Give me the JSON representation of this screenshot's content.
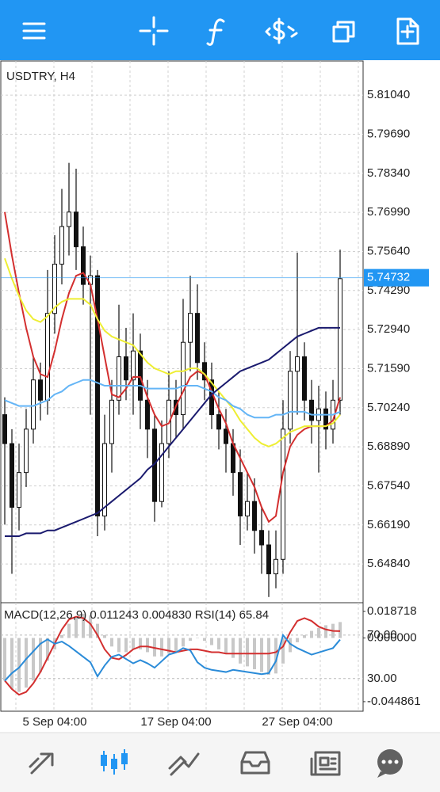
{
  "chart_data": [
    {
      "type": "candlestick",
      "title": "USDTRY, H4",
      "categories": [
        null,
        null,
        null,
        null,
        null,
        null,
        null,
        "5 Sep 04:00",
        null,
        null,
        null,
        null,
        null,
        null,
        null,
        null,
        null,
        null,
        null,
        null,
        null,
        null,
        null,
        null,
        "17 Sep 04:00",
        null,
        null,
        null,
        null,
        null,
        null,
        null,
        null,
        null,
        null,
        null,
        null,
        null,
        null,
        null,
        null,
        "27 Sep 04:00",
        null,
        null,
        null,
        null,
        null,
        null
      ],
      "open": [
        5.7,
        5.69,
        5.668,
        5.68,
        5.695,
        5.712,
        5.705,
        5.735,
        5.752,
        5.765,
        5.77,
        5.758,
        5.745,
        5.748,
        5.665,
        5.69,
        5.705,
        5.72,
        5.712,
        5.722,
        5.705,
        5.695,
        5.67,
        5.69,
        5.705,
        5.7,
        5.725,
        5.735,
        5.718,
        5.712,
        5.7,
        5.695,
        5.69,
        5.68,
        5.665,
        5.67,
        5.66,
        5.655,
        5.645,
        5.65,
        5.695,
        5.715,
        5.72,
        5.705,
        5.698,
        5.702,
        5.695,
        5.705
      ],
      "high": [
        5.706,
        5.695,
        5.69,
        5.702,
        5.72,
        5.718,
        5.75,
        5.762,
        5.778,
        5.787,
        5.785,
        5.765,
        5.755,
        5.75,
        5.7,
        5.712,
        5.738,
        5.73,
        5.735,
        5.728,
        5.712,
        5.7,
        5.698,
        5.715,
        5.712,
        5.74,
        5.748,
        5.745,
        5.725,
        5.718,
        5.708,
        5.702,
        5.695,
        5.688,
        5.68,
        5.678,
        5.668,
        5.66,
        5.66,
        5.705,
        5.722,
        5.756,
        5.725,
        5.712,
        5.71,
        5.708,
        5.712,
        5.757
      ],
      "low": [
        5.662,
        5.645,
        5.66,
        5.675,
        5.69,
        5.698,
        5.7,
        5.728,
        5.745,
        5.755,
        5.75,
        5.738,
        5.7,
        5.658,
        5.66,
        5.68,
        5.7,
        5.705,
        5.7,
        5.695,
        5.685,
        5.663,
        5.668,
        5.685,
        5.692,
        5.695,
        5.715,
        5.712,
        5.705,
        5.695,
        5.688,
        5.68,
        5.672,
        5.655,
        5.66,
        5.652,
        5.645,
        5.637,
        5.64,
        5.645,
        5.69,
        5.7,
        5.698,
        5.69,
        5.68,
        5.688,
        5.69,
        5.7
      ],
      "close": [
        5.69,
        5.668,
        5.68,
        5.695,
        5.712,
        5.705,
        5.735,
        5.752,
        5.765,
        5.77,
        5.758,
        5.745,
        5.748,
        5.665,
        5.69,
        5.705,
        5.72,
        5.712,
        5.722,
        5.705,
        5.695,
        5.67,
        5.69,
        5.705,
        5.7,
        5.725,
        5.735,
        5.718,
        5.712,
        5.7,
        5.695,
        5.69,
        5.68,
        5.665,
        5.67,
        5.66,
        5.655,
        5.645,
        5.65,
        5.695,
        5.715,
        5.72,
        5.705,
        5.698,
        5.702,
        5.695,
        5.705,
        5.747
      ],
      "series": [
        {
          "color": "#d32f2f",
          "values": [
            5.77,
            5.755,
            5.742,
            5.73,
            5.72,
            5.714,
            5.713,
            5.722,
            5.733,
            5.742,
            5.748,
            5.749,
            5.745,
            5.733,
            5.72,
            5.707,
            5.706,
            5.709,
            5.713,
            5.713,
            5.706,
            5.7,
            5.696,
            5.697,
            5.703,
            5.708,
            5.713,
            5.715,
            5.714,
            5.708,
            5.702,
            5.697,
            5.69,
            5.685,
            5.68,
            5.675,
            5.668,
            5.663,
            5.665,
            5.68,
            5.689,
            5.693,
            5.695,
            5.696,
            5.696,
            5.696,
            5.698,
            5.706
          ]
        },
        {
          "color": "#eeee33",
          "values": [
            5.754,
            5.747,
            5.741,
            5.736,
            5.733,
            5.732,
            5.734,
            5.737,
            5.739,
            5.74,
            5.74,
            5.74,
            5.738,
            5.733,
            5.729,
            5.727,
            5.726,
            5.725,
            5.724,
            5.721,
            5.718,
            5.716,
            5.715,
            5.714,
            5.715,
            5.715,
            5.716,
            5.716,
            5.714,
            5.711,
            5.708,
            5.705,
            5.702,
            5.698,
            5.695,
            5.692,
            5.69,
            5.689,
            5.69,
            5.692,
            5.694,
            5.695,
            5.696,
            5.696,
            5.696,
            5.696,
            5.697,
            5.7
          ]
        },
        {
          "color": "#64b5f6",
          "values": [
            5.705,
            5.704,
            5.703,
            5.703,
            5.703,
            5.704,
            5.705,
            5.707,
            5.708,
            5.71,
            5.711,
            5.712,
            5.712,
            5.711,
            5.71,
            5.71,
            5.71,
            5.71,
            5.71,
            5.71,
            5.709,
            5.709,
            5.709,
            5.709,
            5.709,
            5.71,
            5.71,
            5.71,
            5.709,
            5.708,
            5.706,
            5.705,
            5.703,
            5.702,
            5.7,
            5.699,
            5.699,
            5.699,
            5.7,
            5.7,
            5.701,
            5.701,
            5.701,
            5.7,
            5.7,
            5.7,
            5.7,
            5.701
          ]
        },
        {
          "color": "#1a1a6e",
          "values": [
            5.658,
            5.658,
            5.658,
            5.659,
            5.659,
            5.659,
            5.66,
            5.66,
            5.661,
            5.662,
            5.663,
            5.664,
            5.665,
            5.666,
            5.668,
            5.67,
            5.672,
            5.674,
            5.676,
            5.678,
            5.681,
            5.683,
            5.686,
            5.689,
            5.692,
            5.695,
            5.698,
            5.701,
            5.704,
            5.707,
            5.709,
            5.711,
            5.713,
            5.715,
            5.716,
            5.717,
            5.718,
            5.719,
            5.721,
            5.723,
            5.725,
            5.727,
            5.728,
            5.729,
            5.73,
            5.73,
            5.73,
            5.73
          ]
        }
      ],
      "ylim": [
        5.6353,
        5.8222
      ],
      "yticks": [
        {
          "value": 5.8104,
          "label": "5.81040"
        },
        {
          "value": 5.7969,
          "label": "5.79690"
        },
        {
          "value": 5.7834,
          "label": "5.78340"
        },
        {
          "value": 5.7699,
          "label": "5.76990"
        },
        {
          "value": 5.7564,
          "label": "5.75640"
        },
        {
          "value": 5.7429,
          "label": "5.74290"
        },
        {
          "value": 5.7294,
          "label": "5.72940"
        },
        {
          "value": 5.7159,
          "label": "5.71590"
        },
        {
          "value": 5.7024,
          "label": "5.70240"
        },
        {
          "value": 5.6889,
          "label": "5.68890"
        },
        {
          "value": 5.6754,
          "label": "5.67540"
        },
        {
          "value": 5.6619,
          "label": "5.66190"
        },
        {
          "value": 5.6484,
          "label": "5.64840"
        }
      ],
      "current_price": 5.74732,
      "current_price_color": "#2196f3",
      "grid": true
    },
    {
      "type": "macd",
      "legend": "MACD(12,26,9) 0.011243 0.004830 RSI(14) 65.84",
      "histogram": {
        "color": "#c8c8c8",
        "values": [
          -0.03,
          -0.036,
          -0.038,
          -0.035,
          -0.03,
          -0.024,
          -0.016,
          -0.008,
          0.002,
          0.01,
          0.015,
          0.017,
          0.016,
          0.01,
          0.002,
          -0.006,
          -0.01,
          -0.01,
          -0.008,
          -0.008,
          -0.01,
          -0.013,
          -0.013,
          -0.011,
          -0.01,
          -0.006,
          -0.002,
          0.0,
          -0.002,
          -0.005,
          -0.008,
          -0.011,
          -0.014,
          -0.018,
          -0.02,
          -0.022,
          -0.024,
          -0.026,
          -0.025,
          -0.018,
          -0.01,
          -0.003,
          0.002,
          0.005,
          0.007,
          0.009,
          0.01,
          0.011243
        ]
      },
      "series": [
        {
          "color": "#d32f2f",
          "values": [
            -0.03,
            -0.036,
            -0.04,
            -0.038,
            -0.032,
            -0.024,
            -0.014,
            -0.004,
            0.006,
            0.013,
            0.015,
            0.014,
            0.01,
            0.002,
            -0.008,
            -0.014,
            -0.015,
            -0.012,
            -0.008,
            -0.006,
            -0.006,
            -0.007,
            -0.008,
            -0.009,
            -0.01,
            -0.009,
            -0.008,
            -0.008,
            -0.009,
            -0.01,
            -0.01,
            -0.011,
            -0.011,
            -0.011,
            -0.011,
            -0.011,
            -0.011,
            -0.011,
            -0.01,
            -0.006,
            0.004,
            0.012,
            0.014,
            0.012,
            0.008,
            0.006,
            0.005,
            0.00483
          ]
        },
        {
          "color": "#2a8bd8",
          "axis": "y2",
          "values": [
            28,
            35,
            40,
            48,
            55,
            62,
            66,
            62,
            64,
            60,
            55,
            50,
            45,
            32,
            42,
            50,
            52,
            48,
            44,
            47,
            44,
            40,
            46,
            52,
            54,
            58,
            56,
            45,
            40,
            38,
            37,
            36,
            38,
            37,
            36,
            35,
            34,
            35,
            46,
            70,
            62,
            58,
            55,
            52,
            54,
            56,
            58,
            65.84
          ]
        }
      ],
      "ylim": [
        -0.0516,
        0.0243
      ],
      "yticks": [
        0.018718,
        {
          "value": 0,
          "label": "0.000000"
        },
        -0.044861
      ],
      "y2lim": [
        0,
        99
      ],
      "y2ticks": [
        {
          "value": 70,
          "label": "70.00"
        },
        {
          "value": 30,
          "label": "30.00"
        }
      ]
    }
  ]
}
